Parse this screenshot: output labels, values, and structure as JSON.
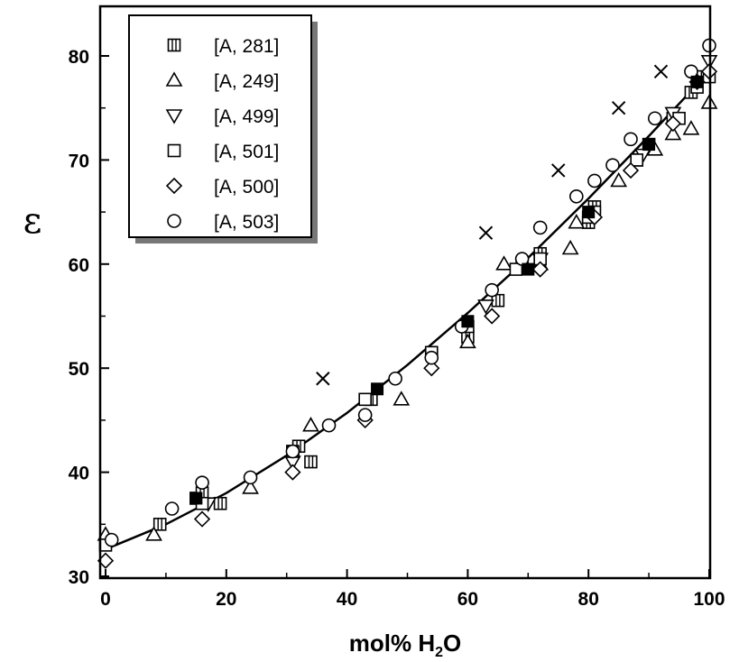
{
  "chart_data": {
    "type": "scatter",
    "title": "",
    "xlabel": "mol% H2O",
    "xlabel_main": "mol% H",
    "xlabel_sub": "2",
    "xlabel_tail": "O",
    "ylabel": "ε",
    "xlim": [
      0,
      100
    ],
    "ylim": [
      30,
      85
    ],
    "xticks": [
      0,
      20,
      40,
      60,
      80,
      100
    ],
    "yticks": [
      30,
      40,
      50,
      60,
      70,
      80
    ],
    "grid": false,
    "legend_position": "top-left",
    "series": [
      {
        "name": "[A, 281]",
        "marker": "square-crossed",
        "points": [
          [
            9,
            35
          ],
          [
            15,
            37.5
          ],
          [
            16,
            38
          ],
          [
            19,
            37
          ],
          [
            31,
            42
          ],
          [
            32,
            42.5
          ],
          [
            34,
            41
          ],
          [
            44,
            47
          ],
          [
            54,
            51.5
          ],
          [
            60,
            53
          ],
          [
            65,
            56.5
          ],
          [
            69,
            60
          ],
          [
            72,
            61
          ],
          [
            80,
            64
          ],
          [
            81,
            65.5
          ],
          [
            88,
            70
          ],
          [
            90,
            71.5
          ],
          [
            94,
            74
          ],
          [
            97,
            76.5
          ],
          [
            99,
            78
          ]
        ]
      },
      {
        "name": "[A, 249]",
        "marker": "triangle-up",
        "points": [
          [
            0,
            34
          ],
          [
            8,
            34
          ],
          [
            24,
            38.5
          ],
          [
            34,
            44.5
          ],
          [
            49,
            47
          ],
          [
            60,
            52.5
          ],
          [
            66,
            60
          ],
          [
            72,
            60
          ],
          [
            77,
            61.5
          ],
          [
            78,
            64
          ],
          [
            85,
            68
          ],
          [
            91,
            71
          ],
          [
            94,
            72.5
          ],
          [
            97,
            73
          ],
          [
            100,
            75.5
          ]
        ]
      },
      {
        "name": "[A, 499]",
        "marker": "triangle-down",
        "points": [
          [
            17,
            37
          ],
          [
            31,
            41
          ],
          [
            63,
            56
          ],
          [
            72,
            60.5
          ],
          [
            89,
            70.5
          ],
          [
            94,
            74.5
          ],
          [
            98,
            77.5
          ],
          [
            100,
            79.5
          ]
        ]
      },
      {
        "name": "[A, 501]",
        "marker": "square",
        "points": [
          [
            0,
            33
          ],
          [
            16,
            37
          ],
          [
            31,
            42
          ],
          [
            43,
            47
          ],
          [
            54,
            51.5
          ],
          [
            60,
            54
          ],
          [
            68,
            59.5
          ],
          [
            72,
            60.5
          ],
          [
            80,
            64.5
          ],
          [
            81,
            65
          ],
          [
            88,
            70
          ],
          [
            95,
            74
          ],
          [
            98,
            77
          ],
          [
            100,
            78
          ]
        ]
      },
      {
        "name": "[A, 500]",
        "marker": "diamond",
        "points": [
          [
            0,
            31.5
          ],
          [
            16,
            35.5
          ],
          [
            31,
            40
          ],
          [
            43,
            45
          ],
          [
            54,
            50
          ],
          [
            64,
            55
          ],
          [
            72,
            59.5
          ],
          [
            81,
            64.5
          ],
          [
            87,
            69
          ],
          [
            94,
            73.5
          ],
          [
            98,
            77.5
          ],
          [
            100,
            78.5
          ]
        ]
      },
      {
        "name": "[A, 503]",
        "marker": "circle",
        "points": [
          [
            1,
            33.5
          ],
          [
            11,
            36.5
          ],
          [
            16,
            39
          ],
          [
            24,
            39.5
          ],
          [
            31,
            42
          ],
          [
            37,
            44.5
          ],
          [
            43,
            45.5
          ],
          [
            48,
            49
          ],
          [
            54,
            51
          ],
          [
            59,
            54
          ],
          [
            64,
            57.5
          ],
          [
            69,
            60.5
          ],
          [
            72,
            63.5
          ],
          [
            78,
            66.5
          ],
          [
            81,
            68
          ],
          [
            84,
            69.5
          ],
          [
            87,
            72
          ],
          [
            91,
            74
          ],
          [
            97,
            78.5
          ],
          [
            100,
            81
          ]
        ]
      },
      {
        "name": "",
        "marker": "filled-square",
        "points": [
          [
            15,
            37.5
          ],
          [
            45,
            48
          ],
          [
            60,
            54.5
          ],
          [
            70,
            59.5
          ],
          [
            80,
            65
          ],
          [
            90,
            71.5
          ],
          [
            98,
            77.5
          ]
        ]
      },
      {
        "name": "",
        "marker": "cross",
        "points": [
          [
            36,
            49
          ],
          [
            63,
            63
          ],
          [
            75,
            69
          ],
          [
            85,
            75
          ],
          [
            92,
            78.5
          ]
        ]
      }
    ],
    "fit_curve": {
      "points": [
        [
          0,
          32.6
        ],
        [
          10,
          35
        ],
        [
          20,
          38
        ],
        [
          30,
          41.6
        ],
        [
          40,
          45.7
        ],
        [
          50,
          50.3
        ],
        [
          60,
          55.3
        ],
        [
          70,
          60.6
        ],
        [
          80,
          66.3
        ],
        [
          90,
          72.3
        ],
        [
          100,
          78.5
        ]
      ]
    }
  }
}
